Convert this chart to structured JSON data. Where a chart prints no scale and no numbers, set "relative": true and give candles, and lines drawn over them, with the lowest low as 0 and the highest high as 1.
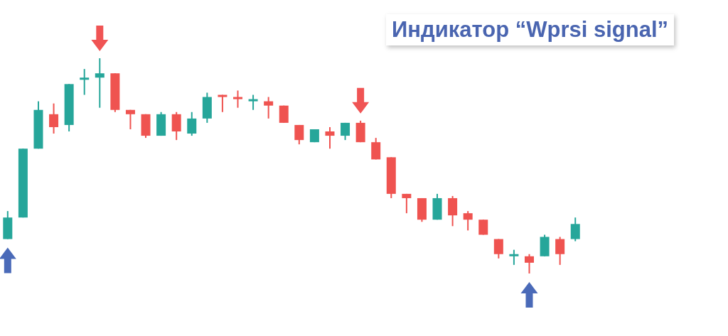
{
  "chart_data": {
    "type": "candlestick",
    "title": "Индикатор “Wprsi signal”",
    "relative": true,
    "categories": [
      null,
      null,
      null,
      null,
      null,
      null,
      null,
      null,
      null,
      null,
      null,
      null,
      null,
      null,
      null,
      null,
      null,
      null,
      null,
      null,
      null,
      null,
      null,
      null,
      null,
      null,
      null,
      null,
      null,
      null,
      null,
      null,
      null,
      null,
      null,
      null,
      null,
      null
    ],
    "ohlc": [
      [
        0.16,
        0.29,
        0.16,
        0.26
      ],
      [
        0.26,
        0.58,
        0.26,
        0.58
      ],
      [
        0.58,
        0.8,
        0.58,
        0.76
      ],
      [
        0.74,
        0.79,
        0.65,
        0.68
      ],
      [
        0.69,
        0.88,
        0.66,
        0.88
      ],
      [
        0.9,
        0.95,
        0.83,
        0.91
      ],
      [
        0.91,
        1,
        0.77,
        0.93
      ],
      [
        0.93,
        0.93,
        0.75,
        0.76
      ],
      [
        0.76,
        0.76,
        0.67,
        0.74
      ],
      [
        0.74,
        0.74,
        0.63,
        0.64
      ],
      [
        0.64,
        0.75,
        0.64,
        0.74
      ],
      [
        0.74,
        0.75,
        0.62,
        0.66
      ],
      [
        0.65,
        0.75,
        0.64,
        0.72
      ],
      [
        0.72,
        0.84,
        0.7,
        0.82
      ],
      [
        0.83,
        0.83,
        0.75,
        0.82
      ],
      [
        0.82,
        0.85,
        0.77,
        0.81
      ],
      [
        0.8,
        0.83,
        0.76,
        0.81
      ],
      [
        0.8,
        0.82,
        0.72,
        0.78
      ],
      [
        0.78,
        0.78,
        0.7,
        0.7
      ],
      [
        0.69,
        0.69,
        0.6,
        0.62
      ],
      [
        0.61,
        0.67,
        0.61,
        0.67
      ],
      [
        0.66,
        0.68,
        0.58,
        0.64
      ],
      [
        0.64,
        0.7,
        0.62,
        0.7
      ],
      [
        0.7,
        0.71,
        0.61,
        0.61
      ],
      [
        0.61,
        0.63,
        0.53,
        0.53
      ],
      [
        0.54,
        0.54,
        0.35,
        0.37
      ],
      [
        0.37,
        0.37,
        0.28,
        0.35
      ],
      [
        0.35,
        0.35,
        0.24,
        0.25
      ],
      [
        0.25,
        0.37,
        0.25,
        0.35
      ],
      [
        0.35,
        0.36,
        0.22,
        0.27
      ],
      [
        0.28,
        0.29,
        0.2,
        0.25
      ],
      [
        0.25,
        0.25,
        0.18,
        0.18
      ],
      [
        0.16,
        0.16,
        0.07,
        0.09
      ],
      [
        0.08,
        0.11,
        0.04,
        0.09
      ],
      [
        0.08,
        0.09,
        0,
        0.05
      ],
      [
        0.08,
        0.18,
        0.08,
        0.17
      ],
      [
        0.16,
        0.17,
        0.04,
        0.09
      ],
      [
        0.16,
        0.26,
        0.15,
        0.23
      ]
    ],
    "colors": [
      "#26a69a",
      "#26a69a",
      "#26a69a",
      "#ef5350",
      "#26a69a",
      "#26a69a",
      "#26a69a",
      "#ef5350",
      "#ef5350",
      "#ef5350",
      "#26a69a",
      "#ef5350",
      "#26a69a",
      "#26a69a",
      "#ef5350",
      "#ef5350",
      "#26a69a",
      "#ef5350",
      "#ef5350",
      "#ef5350",
      "#26a69a",
      "#ef5350",
      "#26a69a",
      "#ef5350",
      "#ef5350",
      "#ef5350",
      "#ef5350",
      "#ef5350",
      "#26a69a",
      "#ef5350",
      "#ef5350",
      "#ef5350",
      "#ef5350",
      "#26a69a",
      "#ef5350",
      "#26a69a",
      "#ef5350",
      "#26a69a"
    ]
  }
}
